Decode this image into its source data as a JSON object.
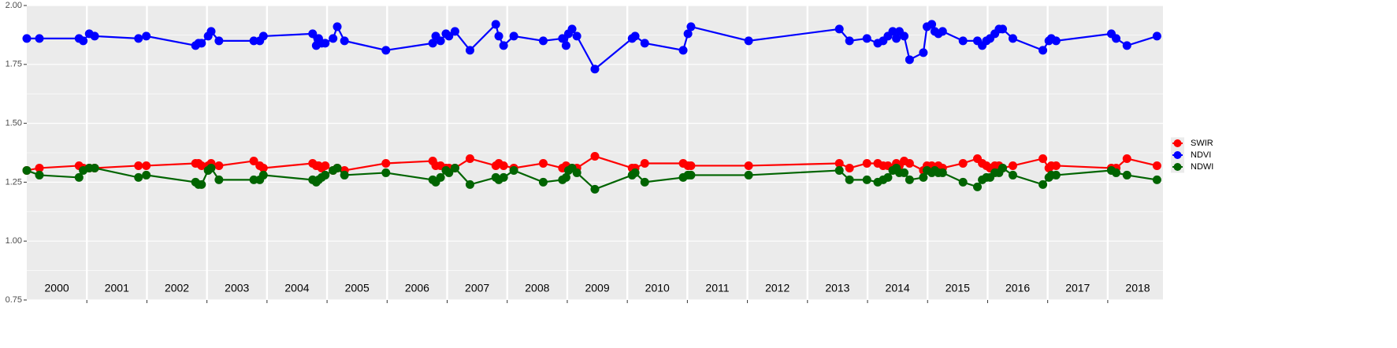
{
  "chart_data": {
    "type": "line",
    "x": [
      2000.0,
      2000.21,
      2000.87,
      2000.94,
      2001.04,
      2001.13,
      2001.86,
      2001.99,
      2002.81,
      2002.86,
      2002.91,
      2003.02,
      2003.07,
      2003.2,
      2003.78,
      2003.88,
      2003.94,
      2004.76,
      2004.82,
      2004.86,
      2004.91,
      2004.97,
      2005.1,
      2005.17,
      2005.29,
      2005.98,
      2006.76,
      2006.81,
      2006.89,
      2006.98,
      2007.03,
      2007.13,
      2007.38,
      2007.81,
      2007.86,
      2007.94,
      2008.11,
      2008.6,
      2008.92,
      2008.98,
      2009.02,
      2009.08,
      2009.16,
      2009.46,
      2010.08,
      2010.13,
      2010.29,
      2010.93,
      2011.01,
      2011.06,
      2012.02,
      2013.53,
      2013.7,
      2013.99,
      2014.17,
      2014.26,
      2014.34,
      2014.42,
      2014.48,
      2014.53,
      2014.61,
      2014.7,
      2014.93,
      2014.99,
      2015.07,
      2015.12,
      2015.18,
      2015.25,
      2015.59,
      2015.83,
      2015.91,
      2015.98,
      2016.04,
      2016.12,
      2016.19,
      2016.25,
      2016.42,
      2016.92,
      2017.02,
      2017.06,
      2017.14,
      2018.06,
      2018.14,
      2018.32,
      2018.82
    ],
    "series": [
      {
        "name": "SWIR",
        "color": "#ff0000",
        "values": [
          1.3,
          1.31,
          1.32,
          1.31,
          1.31,
          1.31,
          1.32,
          1.32,
          1.33,
          1.33,
          1.32,
          1.32,
          1.33,
          1.32,
          1.34,
          1.32,
          1.31,
          1.33,
          1.32,
          1.32,
          1.31,
          1.32,
          1.3,
          1.31,
          1.3,
          1.33,
          1.34,
          1.32,
          1.32,
          1.31,
          1.31,
          1.31,
          1.35,
          1.32,
          1.33,
          1.32,
          1.31,
          1.33,
          1.31,
          1.32,
          1.31,
          1.31,
          1.31,
          1.36,
          1.31,
          1.31,
          1.33,
          1.33,
          1.32,
          1.32,
          1.32,
          1.33,
          1.31,
          1.33,
          1.33,
          1.32,
          1.32,
          1.31,
          1.33,
          1.32,
          1.34,
          1.33,
          1.3,
          1.32,
          1.32,
          1.31,
          1.32,
          1.31,
          1.33,
          1.35,
          1.33,
          1.32,
          1.31,
          1.32,
          1.32,
          1.31,
          1.32,
          1.35,
          1.31,
          1.32,
          1.32,
          1.31,
          1.31,
          1.35,
          1.32
        ]
      },
      {
        "name": "NDVI",
        "color": "#0000ff",
        "values": [
          1.86,
          1.86,
          1.86,
          1.85,
          1.88,
          1.87,
          1.86,
          1.87,
          1.83,
          1.84,
          1.84,
          1.87,
          1.89,
          1.85,
          1.85,
          1.85,
          1.87,
          1.88,
          1.83,
          1.86,
          1.84,
          1.84,
          1.86,
          1.91,
          1.85,
          1.81,
          1.84,
          1.87,
          1.85,
          1.88,
          1.87,
          1.89,
          1.81,
          1.92,
          1.87,
          1.83,
          1.87,
          1.85,
          1.86,
          1.83,
          1.88,
          1.9,
          1.87,
          1.73,
          1.86,
          1.87,
          1.84,
          1.81,
          1.88,
          1.91,
          1.85,
          1.9,
          1.85,
          1.86,
          1.84,
          1.85,
          1.87,
          1.89,
          1.86,
          1.89,
          1.87,
          1.77,
          1.8,
          1.91,
          1.92,
          1.89,
          1.88,
          1.89,
          1.85,
          1.85,
          1.83,
          1.85,
          1.86,
          1.88,
          1.9,
          1.9,
          1.86,
          1.81,
          1.85,
          1.86,
          1.85,
          1.88,
          1.86,
          1.83,
          1.87
        ]
      },
      {
        "name": "NDWI",
        "color": "#006400",
        "values": [
          1.3,
          1.28,
          1.27,
          1.3,
          1.31,
          1.31,
          1.27,
          1.28,
          1.25,
          1.24,
          1.24,
          1.3,
          1.31,
          1.26,
          1.26,
          1.26,
          1.28,
          1.26,
          1.25,
          1.26,
          1.27,
          1.28,
          1.3,
          1.31,
          1.28,
          1.29,
          1.26,
          1.25,
          1.27,
          1.3,
          1.29,
          1.31,
          1.24,
          1.27,
          1.26,
          1.27,
          1.3,
          1.25,
          1.26,
          1.27,
          1.3,
          1.31,
          1.29,
          1.22,
          1.28,
          1.29,
          1.25,
          1.27,
          1.28,
          1.28,
          1.28,
          1.3,
          1.26,
          1.26,
          1.25,
          1.26,
          1.27,
          1.3,
          1.31,
          1.29,
          1.29,
          1.26,
          1.27,
          1.3,
          1.29,
          1.3,
          1.29,
          1.29,
          1.25,
          1.23,
          1.26,
          1.27,
          1.27,
          1.29,
          1.29,
          1.31,
          1.28,
          1.24,
          1.27,
          1.28,
          1.28,
          1.3,
          1.29,
          1.28,
          1.26
        ]
      }
    ],
    "xlim": [
      2000,
      2018.92
    ],
    "xticks": [
      2001,
      2002,
      2003,
      2004,
      2005,
      2006,
      2007,
      2008,
      2009,
      2010,
      2011,
      2012,
      2013,
      2014,
      2015,
      2016,
      2017,
      2018
    ],
    "ylim": [
      0.75,
      2
    ],
    "yticks": [
      {
        "value": 0.75,
        "label": "0.75"
      },
      {
        "value": 1,
        "label": "1.00"
      },
      {
        "value": 1.25,
        "label": "1.25"
      },
      {
        "value": 1.5,
        "label": "1.50"
      },
      {
        "value": 1.75,
        "label": "1.75"
      },
      {
        "value": 2,
        "label": "2.00"
      }
    ],
    "y_minor_ticks": [
      0.875,
      1.125,
      1.375,
      1.625,
      1.875
    ],
    "grid": true,
    "legend": "right",
    "year_labels": [
      {
        "text": "2000",
        "x": 2000.5
      },
      {
        "text": "2001",
        "x": 2001.5
      },
      {
        "text": "2002",
        "x": 2002.5
      },
      {
        "text": "2003",
        "x": 2003.5
      },
      {
        "text": "2004",
        "x": 2004.5
      },
      {
        "text": "2005",
        "x": 2005.5
      },
      {
        "text": "2006",
        "x": 2006.5
      },
      {
        "text": "2007",
        "x": 2007.5
      },
      {
        "text": "2008",
        "x": 2008.5
      },
      {
        "text": "2009",
        "x": 2009.5
      },
      {
        "text": "2010",
        "x": 2010.5
      },
      {
        "text": "2011",
        "x": 2011.5
      },
      {
        "text": "2012",
        "x": 2012.5
      },
      {
        "text": "2013",
        "x": 2013.5
      },
      {
        "text": "2014",
        "x": 2014.5
      },
      {
        "text": "2015",
        "x": 2015.5
      },
      {
        "text": "2016",
        "x": 2016.5
      },
      {
        "text": "2017",
        "x": 2017.5
      },
      {
        "text": "2018",
        "x": 2018.5
      }
    ]
  }
}
